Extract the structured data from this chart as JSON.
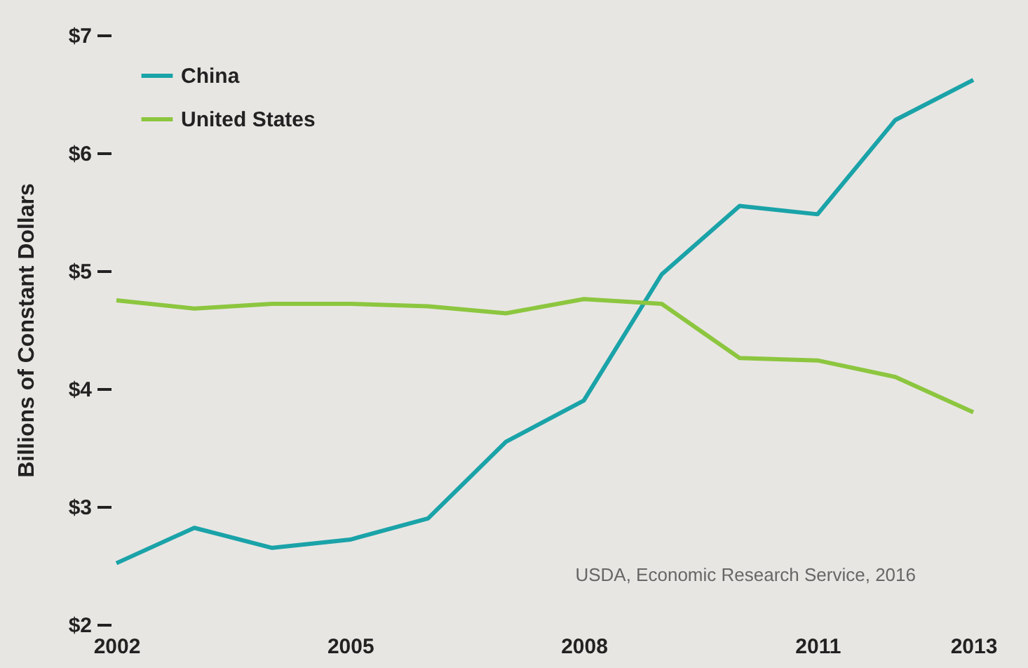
{
  "chart_data": {
    "type": "line",
    "ylabel": "Billions of Constant Dollars",
    "x": [
      2002,
      2003,
      2004,
      2005,
      2006,
      2007,
      2008,
      2009,
      2010,
      2011,
      2012,
      2013
    ],
    "series": [
      {
        "name": "China",
        "color": "#1aa3a8",
        "values": [
          2.52,
          2.82,
          2.65,
          2.72,
          2.9,
          3.55,
          3.9,
          4.97,
          5.55,
          5.48,
          6.28,
          6.62
        ]
      },
      {
        "name": "United States",
        "color": "#8cc63f",
        "values": [
          4.75,
          4.68,
          4.72,
          4.72,
          4.7,
          4.64,
          4.76,
          4.72,
          4.26,
          4.24,
          4.1,
          3.8
        ]
      }
    ],
    "xlim": [
      2002,
      2013
    ],
    "xticks": [
      2002,
      2005,
      2008,
      2011,
      2013
    ],
    "ylim": [
      2,
      7
    ],
    "yticks": [
      {
        "value": 2,
        "label": "$2"
      },
      {
        "value": 3,
        "label": "$3"
      },
      {
        "value": 4,
        "label": "$4"
      },
      {
        "value": 5,
        "label": "$5"
      },
      {
        "value": 6,
        "label": "$6"
      },
      {
        "value": 7,
        "label": "$7"
      }
    ],
    "annotations": [
      "USDA, Economic Research Service, 2016"
    ],
    "legend": "top left",
    "grid": false,
    "marker": "none",
    "line_style": "solid"
  }
}
